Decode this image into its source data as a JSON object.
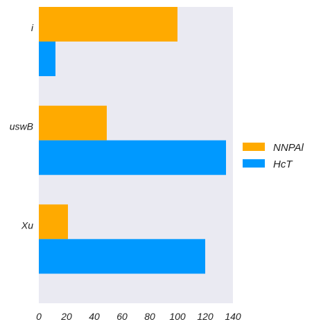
{
  "chart_data": {
    "type": "bar",
    "orientation": "horizontal",
    "categories": [
      "i",
      "uswB",
      "Xu"
    ],
    "series": [
      {
        "name": "NNPAl",
        "color": "#FFAA00",
        "values": [
          100,
          49,
          21
        ]
      },
      {
        "name": "HcT",
        "color": "#0099FF",
        "values": [
          12,
          135,
          120
        ]
      }
    ],
    "title": "",
    "xlabel": "",
    "ylabel": "",
    "xlim": [
      0,
      140
    ],
    "xticks": [
      0,
      20,
      40,
      60,
      80,
      100,
      120,
      140
    ],
    "grid": false,
    "legend_position": "right",
    "plot_background": "#EAEAF2"
  }
}
